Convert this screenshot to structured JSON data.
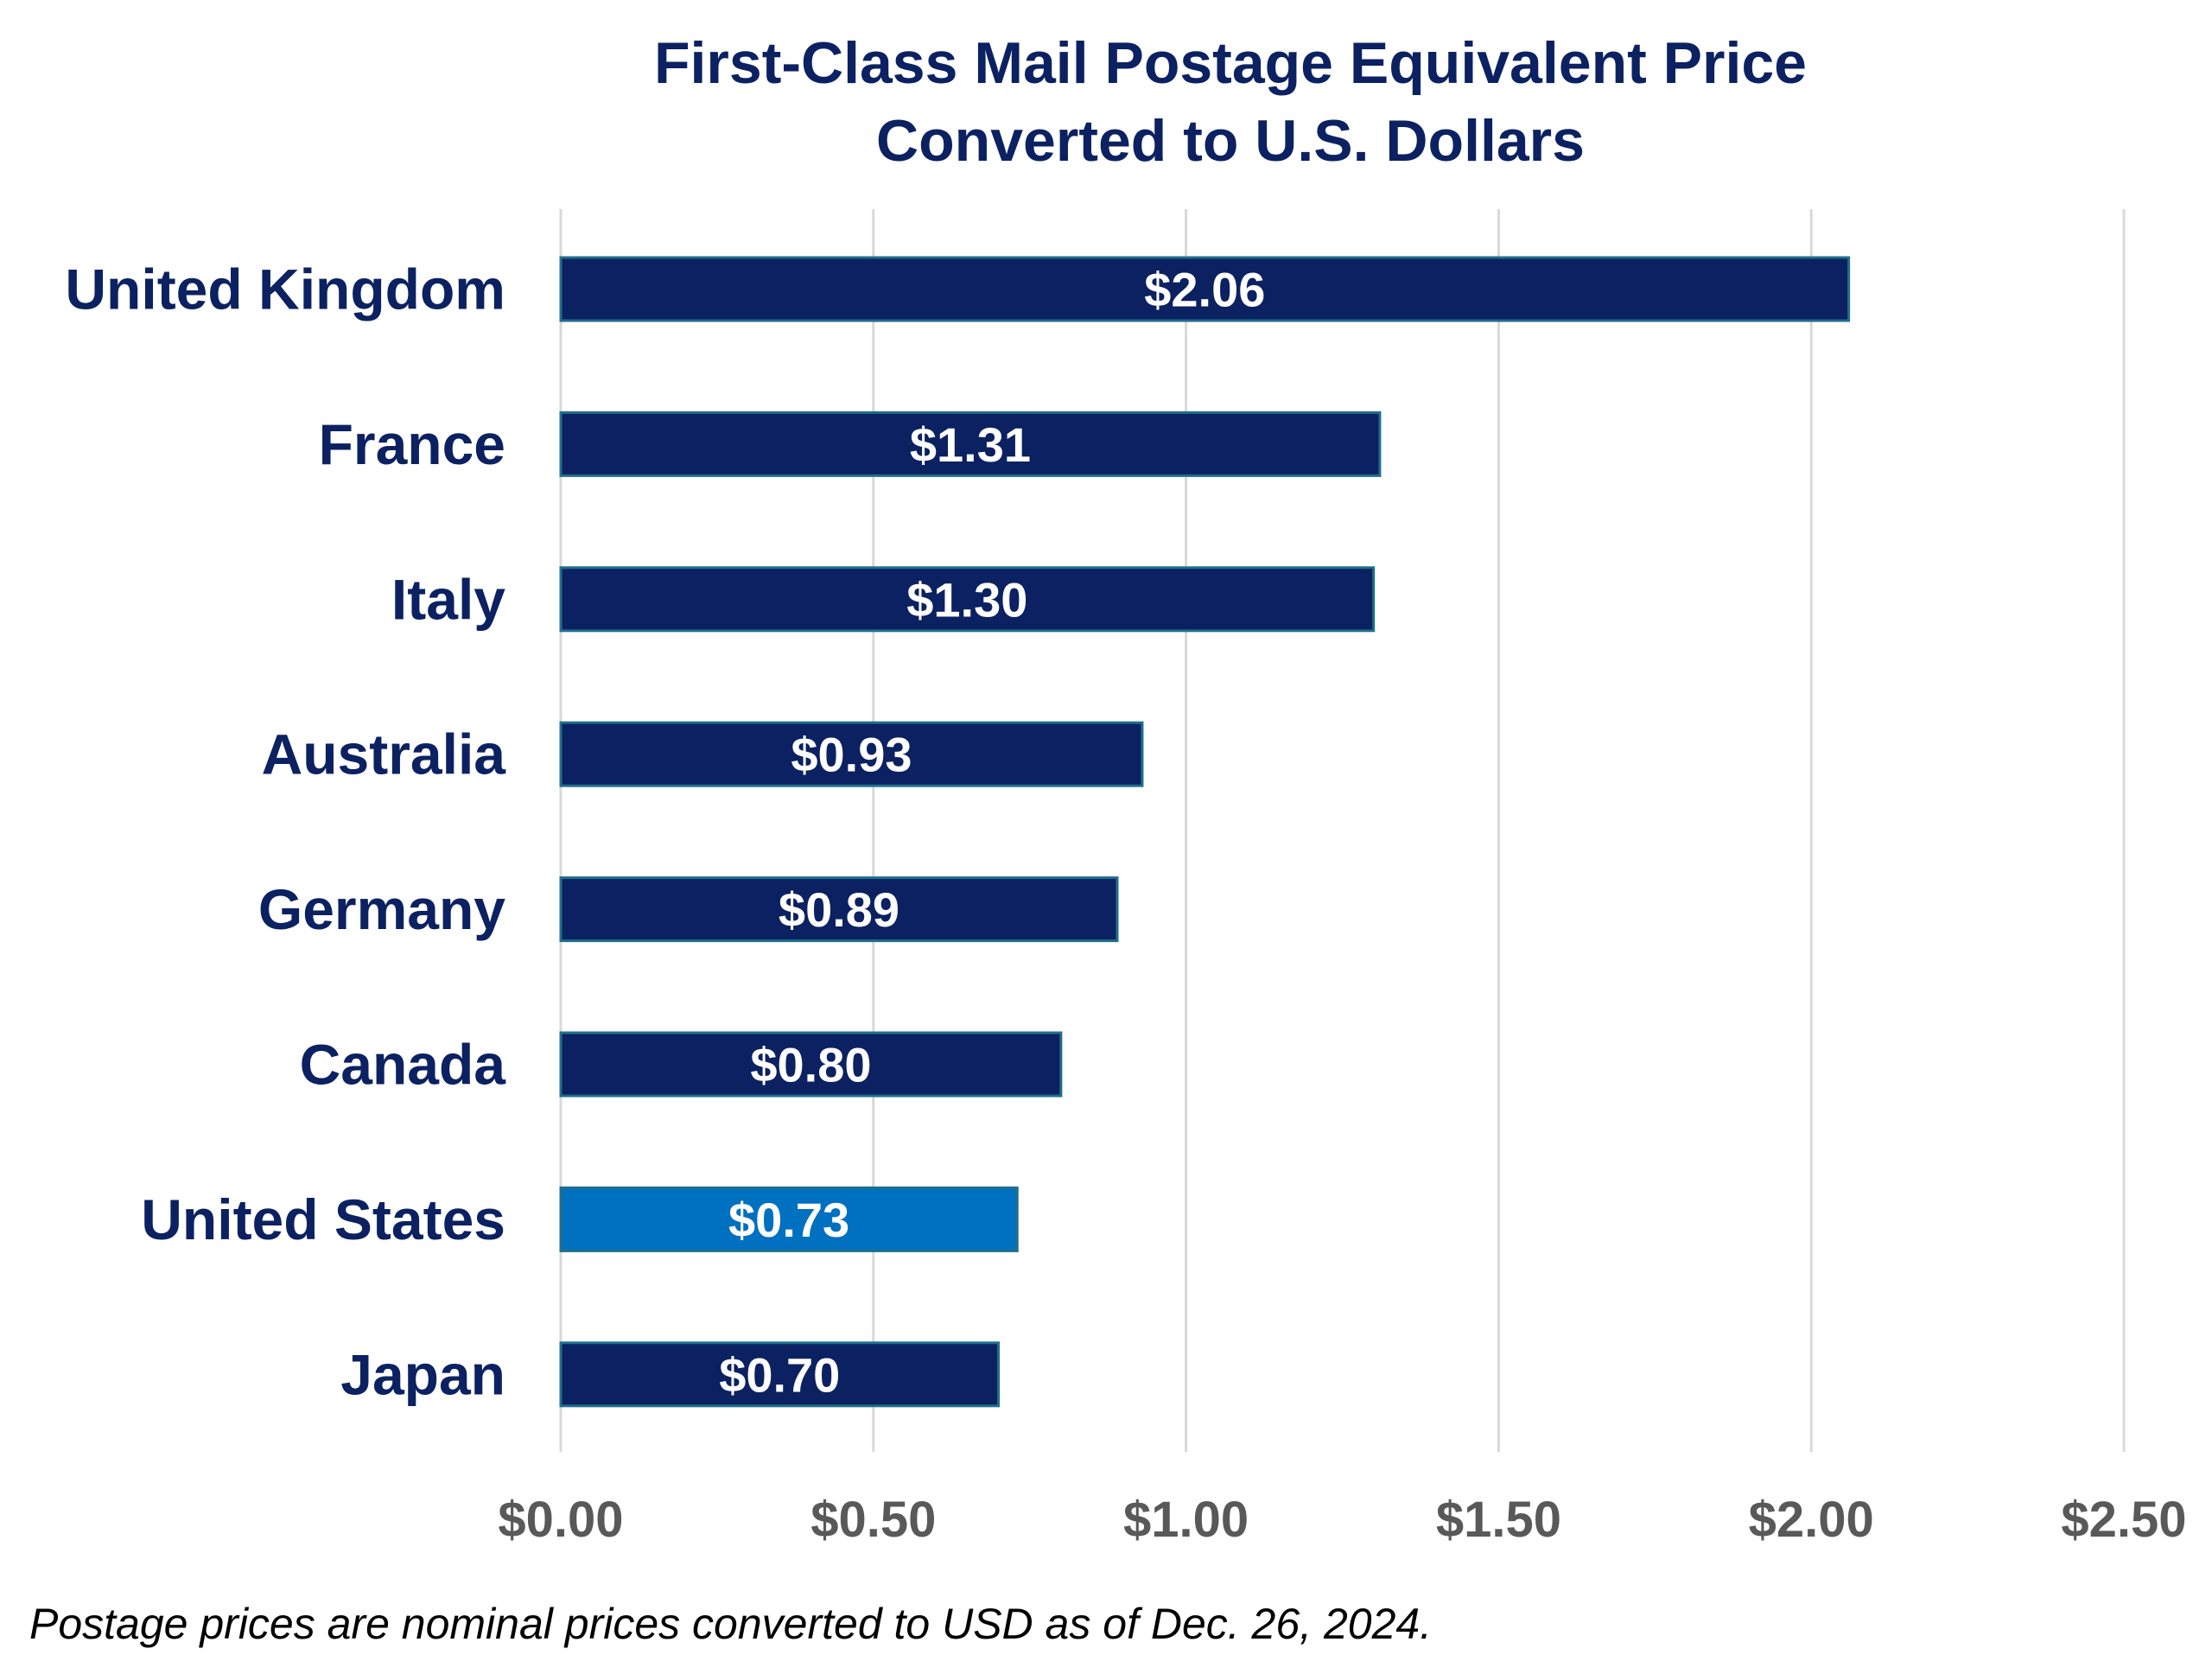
{
  "chart_data": {
    "type": "bar",
    "orientation": "horizontal",
    "title": "First-Class Mail Postage Equivalent Price Converted to U.S. Dollars",
    "title_lines": [
      "First-Class Mail Postage Equivalent Price",
      "Converted to U.S. Dollars"
    ],
    "categories": [
      "United Kingdom",
      "France",
      "Italy",
      "Australia",
      "Germany",
      "Canada",
      "United States",
      "Japan"
    ],
    "values": [
      2.06,
      1.31,
      1.3,
      0.93,
      0.89,
      0.8,
      0.73,
      0.7
    ],
    "data_labels": [
      "$2.06",
      "$1.31",
      "$1.30",
      "$0.93",
      "$0.89",
      "$0.80",
      "$0.73",
      "$0.70"
    ],
    "bar_colors": [
      "#0b2161",
      "#0b2161",
      "#0b2161",
      "#0b2161",
      "#0b2161",
      "#0b2161",
      "#0070c0",
      "#0b2161"
    ],
    "highlight_category": "United States",
    "xlim": [
      0,
      2.5
    ],
    "x_ticks": [
      0,
      0.5,
      1.0,
      1.5,
      2.0,
      2.5
    ],
    "x_tick_labels": [
      "$0.00",
      "$0.50",
      "$1.00",
      "$1.50",
      "$2.00",
      "$2.50"
    ],
    "xlabel": "",
    "ylabel": "",
    "grid": "vertical",
    "legend": "none",
    "colors": {
      "bar": "#0b2161",
      "highlight": "#0070c0",
      "title": "#0b2161",
      "ticks": "#595959",
      "grid": "#d9d9d9"
    }
  },
  "footnote": "Postage prices are nominal prices converted to USD as of Dec. 26, 2024."
}
